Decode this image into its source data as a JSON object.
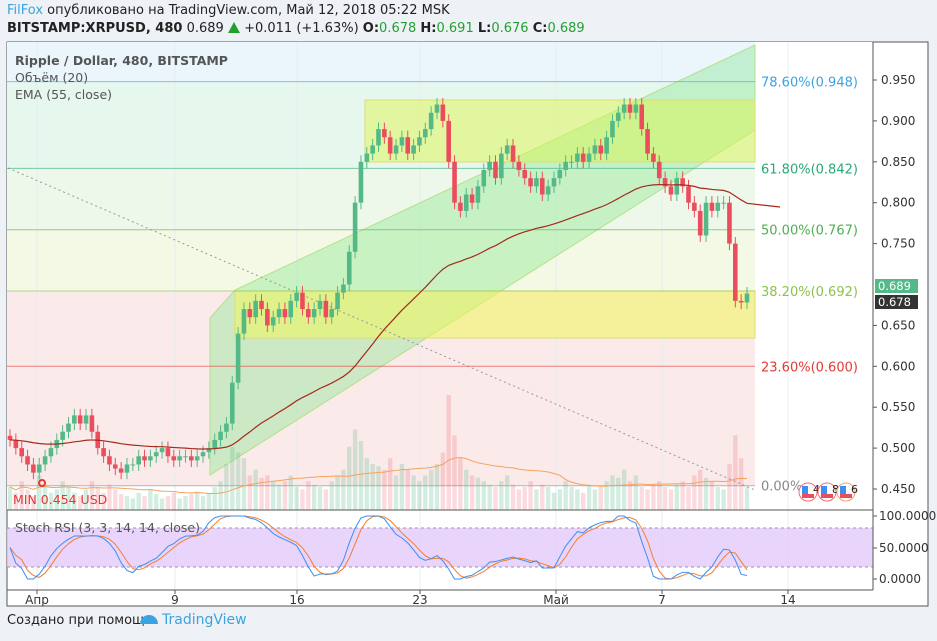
{
  "header": {
    "author": "FilFox",
    "published": "опубликовано на TradingView.com, Май 12, 2018 05:22 MSK",
    "symbol": "BITSTAMP:XRPUSD, 480",
    "last": "0.689",
    "change": "+0.011 (+1.63%)",
    "o_label": "O:",
    "o": "0.678",
    "h_label": "H:",
    "h": "0.691",
    "l_label": "L:",
    "l": "0.676",
    "c_label": "C:",
    "c": "0.689"
  },
  "legend": {
    "title": "Ripple / Dollar, 480, BITSTAMP",
    "volume": "Объём (20)",
    "ema": "EMA (55, close)",
    "stoch": "Stoch RSI (3, 3, 14, 14, close)"
  },
  "min_label": "MIN 0.454 USD",
  "price_labels": {
    "last": "0.689",
    "open": "0.678"
  },
  "events": [
    "4",
    "8",
    "6"
  ],
  "footer": {
    "created": "Создано при помощи",
    "brand": "TradingView"
  },
  "colors": {
    "up": "#53b987",
    "down": "#eb4d5c",
    "ema": "#a52a1a",
    "stoch_k": "#3d8ff0",
    "stoch_d": "#f57f2a",
    "rsi_band": "#e3c9fb"
  },
  "chart_data": {
    "type": "candlestick",
    "x_ticks": [
      "Апр",
      "9",
      "16",
      "23",
      "Май",
      "7",
      "14"
    ],
    "y_ticks": [
      "0.950",
      "0.900",
      "0.850",
      "0.800",
      "0.750",
      "0.650",
      "0.600",
      "0.550",
      "0.500",
      "0.450"
    ],
    "rsi_ticks": [
      "100.0000",
      "50.0000",
      "0.0000"
    ],
    "ylim": [
      0.43,
      0.99
    ],
    "close": [
      0.51,
      0.5,
      0.49,
      0.48,
      0.47,
      0.48,
      0.49,
      0.5,
      0.51,
      0.52,
      0.53,
      0.54,
      0.53,
      0.54,
      0.52,
      0.5,
      0.49,
      0.48,
      0.475,
      0.47,
      0.48,
      0.48,
      0.49,
      0.485,
      0.49,
      0.495,
      0.5,
      0.49,
      0.485,
      0.49,
      0.49,
      0.485,
      0.49,
      0.495,
      0.5,
      0.51,
      0.52,
      0.53,
      0.58,
      0.64,
      0.67,
      0.66,
      0.68,
      0.67,
      0.65,
      0.66,
      0.67,
      0.66,
      0.68,
      0.69,
      0.67,
      0.66,
      0.67,
      0.68,
      0.66,
      0.67,
      0.69,
      0.7,
      0.74,
      0.8,
      0.85,
      0.86,
      0.87,
      0.89,
      0.88,
      0.86,
      0.87,
      0.88,
      0.86,
      0.87,
      0.88,
      0.89,
      0.91,
      0.92,
      0.9,
      0.85,
      0.8,
      0.79,
      0.81,
      0.8,
      0.82,
      0.84,
      0.85,
      0.83,
      0.86,
      0.87,
      0.85,
      0.84,
      0.83,
      0.82,
      0.83,
      0.81,
      0.82,
      0.83,
      0.84,
      0.85,
      0.85,
      0.86,
      0.85,
      0.86,
      0.87,
      0.86,
      0.88,
      0.9,
      0.91,
      0.92,
      0.91,
      0.92,
      0.89,
      0.86,
      0.85,
      0.83,
      0.82,
      0.81,
      0.83,
      0.82,
      0.8,
      0.79,
      0.76,
      0.8,
      0.79,
      0.8,
      0.8,
      0.75,
      0.68,
      0.678,
      0.689
    ],
    "volume": [
      20,
      15,
      25,
      18,
      12,
      30,
      22,
      15,
      18,
      25,
      20,
      15,
      12,
      18,
      25,
      20,
      15,
      22,
      18,
      14,
      12,
      10,
      15,
      12,
      18,
      14,
      10,
      12,
      15,
      10,
      12,
      14,
      16,
      12,
      15,
      20,
      25,
      40,
      55,
      50,
      45,
      30,
      35,
      28,
      30,
      25,
      22,
      25,
      30,
      20,
      18,
      25,
      22,
      20,
      18,
      25,
      30,
      35,
      55,
      70,
      60,
      45,
      40,
      38,
      35,
      45,
      30,
      40,
      35,
      30,
      25,
      30,
      35,
      40,
      50,
      100,
      65,
      45,
      35,
      30,
      28,
      25,
      22,
      20,
      25,
      30,
      22,
      18,
      20,
      25,
      18,
      22,
      20,
      15,
      18,
      25,
      20,
      18,
      15,
      22,
      18,
      20,
      25,
      30,
      28,
      35,
      25,
      30,
      20,
      18,
      22,
      25,
      20,
      18,
      22,
      25,
      20,
      30,
      35,
      28,
      25,
      20,
      18,
      40,
      65,
      45,
      20
    ],
    "fib_levels": [
      {
        "label": "78.60%(0.948)",
        "value": 0.948,
        "color": "#3ba3e0"
      },
      {
        "label": "61.80%(0.842)",
        "value": 0.842,
        "color": "#2aa876"
      },
      {
        "label": "50.00%(0.767)",
        "value": 0.767,
        "color": "#4caf50"
      },
      {
        "label": "38.20%(0.692)",
        "value": 0.692,
        "color": "#8bc34a"
      },
      {
        "label": "23.60%(0.600)",
        "value": 0.6,
        "color": "#e53935"
      },
      {
        "label": "0.00%",
        "value": 0.454,
        "color": "#888888"
      }
    ]
  }
}
